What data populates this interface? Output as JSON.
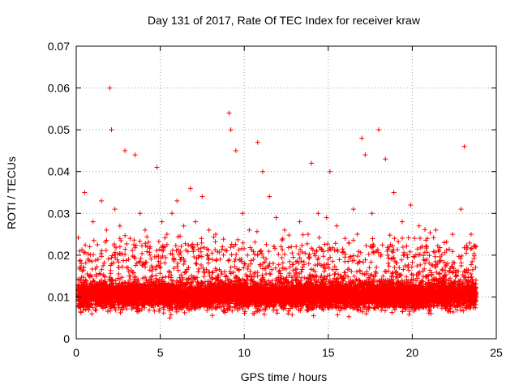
{
  "chart_data": {
    "type": "scatter",
    "title": "Day 131 of 2017, Rate Of TEC Index for receiver kraw",
    "xlabel": "GPS time / hours",
    "ylabel": "ROTI / TECUs",
    "xlim": [
      0,
      25
    ],
    "ylim": [
      0,
      0.07
    ],
    "xticks": [
      "0",
      "5",
      "10",
      "15",
      "20",
      "25"
    ],
    "yticks": [
      "0",
      "0.01",
      "0.02",
      "0.03",
      "0.04",
      "0.05",
      "0.06",
      "0.07"
    ],
    "grid": true,
    "marker": "+",
    "color": "#ff0000",
    "series": [
      {
        "name": "ROTI",
        "x": [
          0.1,
          0.3,
          0.5,
          0.8,
          1.0,
          1.3,
          1.5,
          1.8,
          2.0,
          2.1,
          2.3,
          2.6,
          2.9,
          3.2,
          3.5,
          3.8,
          4.1,
          4.4,
          4.8,
          5.1,
          5.4,
          5.7,
          6.0,
          6.4,
          6.8,
          7.1,
          7.5,
          7.9,
          8.3,
          8.7,
          9.1,
          9.2,
          9.5,
          9.9,
          10.3,
          10.8,
          11.1,
          11.5,
          11.9,
          12.4,
          12.8,
          13.3,
          13.8,
          14.0,
          14.4,
          14.9,
          15.1,
          15.5,
          16.0,
          16.5,
          17.0,
          17.2,
          17.6,
          18.0,
          18.4,
          18.9,
          19.4,
          19.9,
          20.4,
          20.9,
          21.4,
          21.9,
          22.4,
          22.9,
          23.1,
          23.5,
          23.8
        ],
        "y": [
          0.012,
          0.018,
          0.035,
          0.022,
          0.028,
          0.019,
          0.033,
          0.026,
          0.06,
          0.05,
          0.031,
          0.027,
          0.045,
          0.024,
          0.044,
          0.03,
          0.026,
          0.022,
          0.041,
          0.028,
          0.025,
          0.03,
          0.033,
          0.027,
          0.036,
          0.028,
          0.034,
          0.026,
          0.025,
          0.022,
          0.054,
          0.05,
          0.045,
          0.03,
          0.026,
          0.047,
          0.04,
          0.034,
          0.029,
          0.026,
          0.022,
          0.028,
          0.025,
          0.042,
          0.03,
          0.029,
          0.04,
          0.027,
          0.024,
          0.031,
          0.048,
          0.044,
          0.03,
          0.05,
          0.043,
          0.035,
          0.028,
          0.032,
          0.027,
          0.024,
          0.026,
          0.023,
          0.025,
          0.031,
          0.046,
          0.025,
          0.022
        ]
      }
    ]
  }
}
